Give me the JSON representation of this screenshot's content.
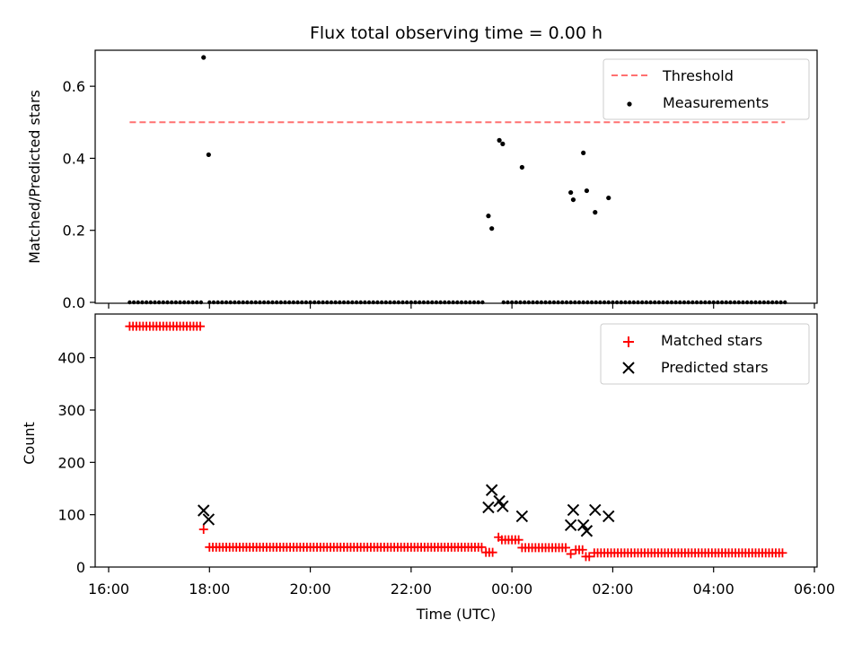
{
  "chart_data": [
    {
      "type": "scatter",
      "title": "Flux total observing time = 0.00 h",
      "xlabel": "",
      "ylabel": "Matched/Predicted stars",
      "xlim": [
        "16:00",
        "06:00"
      ],
      "ylim": [
        0,
        0.7
      ],
      "yticks": [
        "0.0",
        "0.2",
        "0.4",
        "0.6"
      ],
      "legend": "top-right",
      "grid": false,
      "series": [
        {
          "name": "Threshold",
          "style": "dashed-line",
          "color": "#ff7070",
          "x": [
            "16:25",
            "05:25"
          ],
          "y": [
            0.5,
            0.5
          ]
        },
        {
          "name": "Measurements",
          "style": "dots",
          "color": "#000000",
          "zero_range": [
            "16:25",
            "05:25"
          ],
          "zero_step_minutes": 5,
          "zero_gaps": [
            [
              "17:53",
              "18:00"
            ],
            [
              "23:25",
              "23:49"
            ]
          ],
          "points": [
            {
              "x": "17:53",
              "y": 0.68
            },
            {
              "x": "17:59",
              "y": 0.41
            },
            {
              "x": "23:32",
              "y": 0.24
            },
            {
              "x": "23:36",
              "y": 0.205
            },
            {
              "x": "23:45",
              "y": 0.45
            },
            {
              "x": "23:49",
              "y": 0.44
            },
            {
              "x": "00:12",
              "y": 0.375
            },
            {
              "x": "01:10",
              "y": 0.305
            },
            {
              "x": "01:13",
              "y": 0.285
            },
            {
              "x": "01:25",
              "y": 0.415
            },
            {
              "x": "01:29",
              "y": 0.31
            },
            {
              "x": "01:39",
              "y": 0.25
            },
            {
              "x": "01:55",
              "y": 0.29
            }
          ]
        }
      ]
    },
    {
      "type": "scatter",
      "title": "",
      "xlabel": "Time (UTC)",
      "ylabel": "Count",
      "xlim": [
        "16:00",
        "06:00"
      ],
      "xticks": [
        "16:00",
        "18:00",
        "20:00",
        "22:00",
        "00:00",
        "02:00",
        "04:00",
        "06:00"
      ],
      "ylim": [
        0,
        480
      ],
      "yticks": [
        "0",
        "100",
        "200",
        "300",
        "400"
      ],
      "legend": "top-right",
      "grid": false,
      "series": [
        {
          "name": "Matched stars",
          "marker": "+",
          "color": "#ff0000",
          "step_minutes": 4,
          "segments": [
            {
              "from": "16:25",
              "to": "17:50",
              "y": 460
            },
            {
              "from": "17:53",
              "to": "17:53",
              "y": 72
            },
            {
              "from": "18:00",
              "to": "23:25",
              "y": 38
            },
            {
              "from": "23:29",
              "to": "23:40",
              "y": 28
            },
            {
              "from": "23:44",
              "to": "23:44",
              "y": 57
            },
            {
              "from": "23:48",
              "to": "00:08",
              "y": 52
            },
            {
              "from": "00:12",
              "to": "01:07",
              "y": 37
            },
            {
              "from": "01:10",
              "to": "01:13",
              "y": 25
            },
            {
              "from": "01:16",
              "to": "01:25",
              "y": 33
            },
            {
              "from": "01:28",
              "to": "01:35",
              "y": 20
            },
            {
              "from": "01:38",
              "to": "05:25",
              "y": 27
            }
          ]
        },
        {
          "name": "Predicted stars",
          "marker": "x",
          "color": "#000000",
          "points": [
            {
              "x": "17:53",
              "y": 108
            },
            {
              "x": "17:59",
              "y": 91
            },
            {
              "x": "23:32",
              "y": 114
            },
            {
              "x": "23:36",
              "y": 147
            },
            {
              "x": "23:45",
              "y": 126
            },
            {
              "x": "23:49",
              "y": 116
            },
            {
              "x": "00:12",
              "y": 97
            },
            {
              "x": "01:10",
              "y": 80
            },
            {
              "x": "01:13",
              "y": 109
            },
            {
              "x": "01:25",
              "y": 80
            },
            {
              "x": "01:29",
              "y": 69
            },
            {
              "x": "01:39",
              "y": 109
            },
            {
              "x": "01:55",
              "y": 97
            }
          ]
        }
      ]
    }
  ]
}
